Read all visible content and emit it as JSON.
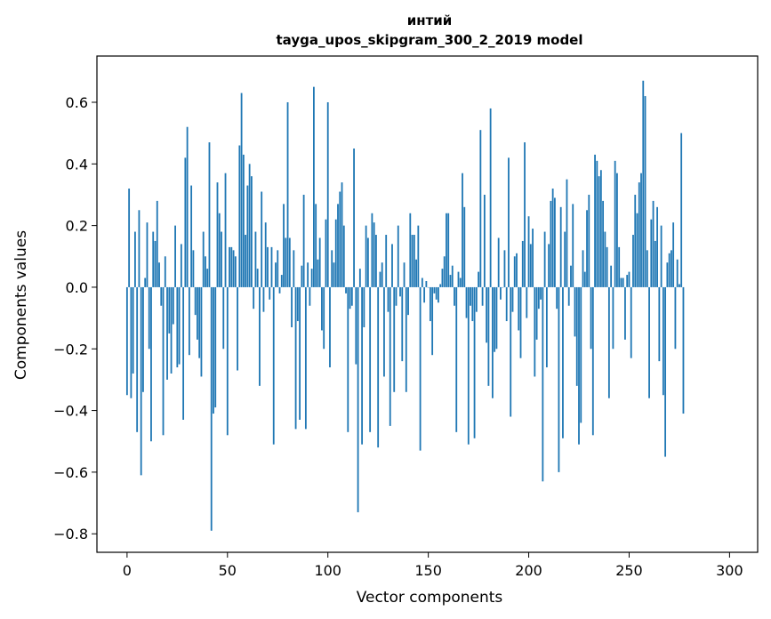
{
  "chart_data": {
    "type": "bar",
    "title_line1": "интий",
    "title_line2": "tayga_upos_skipgram_300_2_2019 model",
    "xlabel": "Vector components",
    "ylabel": "Components values",
    "xlim": [
      -15,
      314
    ],
    "ylim": [
      -0.86,
      0.75
    ],
    "xticks": [
      0,
      50,
      100,
      150,
      200,
      250,
      300
    ],
    "xtick_labels": [
      "0",
      "50",
      "100",
      "150",
      "200",
      "250",
      "300"
    ],
    "yticks": [
      -0.8,
      -0.6,
      -0.4,
      -0.2,
      0.0,
      0.2,
      0.4,
      0.6
    ],
    "ytick_labels": [
      "−0.8",
      "−0.6",
      "−0.4",
      "−0.2",
      "0.0",
      "0.2",
      "0.4",
      "0.6"
    ],
    "color": "#1f77b4",
    "values": [
      -0.35,
      0.32,
      -0.36,
      -0.28,
      0.18,
      -0.47,
      0.25,
      -0.61,
      -0.34,
      0.03,
      0.21,
      -0.2,
      -0.5,
      0.18,
      0.15,
      0.28,
      0.08,
      -0.06,
      -0.48,
      0.1,
      -0.3,
      -0.15,
      -0.28,
      -0.12,
      0.2,
      -0.26,
      -0.25,
      0.14,
      -0.43,
      0.42,
      0.52,
      -0.22,
      0.33,
      0.12,
      -0.09,
      -0.17,
      -0.23,
      -0.29,
      0.18,
      0.1,
      0.06,
      0.47,
      -0.79,
      -0.41,
      -0.39,
      0.34,
      0.24,
      0.18,
      -0.2,
      0.37,
      -0.48,
      0.13,
      0.13,
      0.12,
      0.1,
      -0.27,
      0.46,
      0.63,
      0.43,
      0.17,
      0.33,
      0.4,
      0.36,
      -0.07,
      0.18,
      0.06,
      -0.32,
      0.31,
      -0.08,
      0.21,
      0.13,
      -0.04,
      0.13,
      -0.51,
      0.08,
      0.12,
      -0.02,
      0.04,
      0.27,
      0.16,
      0.6,
      0.16,
      -0.13,
      0.12,
      -0.46,
      -0.11,
      -0.43,
      0.07,
      0.3,
      -0.46,
      0.08,
      -0.06,
      0.06,
      0.65,
      0.27,
      0.09,
      0.16,
      -0.14,
      -0.2,
      0.22,
      0.6,
      -0.26,
      0.12,
      0.08,
      0.22,
      0.27,
      0.31,
      0.34,
      0.2,
      -0.02,
      -0.47,
      -0.07,
      -0.06,
      0.45,
      -0.25,
      -0.73,
      0.06,
      -0.51,
      -0.13,
      0.2,
      0.16,
      -0.47,
      0.24,
      0.21,
      0.17,
      -0.52,
      0.05,
      0.08,
      -0.29,
      0.17,
      -0.08,
      -0.45,
      0.14,
      -0.34,
      -0.06,
      0.2,
      -0.03,
      -0.24,
      0.08,
      -0.34,
      -0.09,
      0.24,
      0.17,
      0.17,
      0.09,
      0.2,
      -0.53,
      0.03,
      -0.05,
      0.02,
      0.0,
      -0.11,
      -0.22,
      -0.02,
      -0.04,
      -0.05,
      0.01,
      0.06,
      0.1,
      0.24,
      0.24,
      0.04,
      0.07,
      -0.06,
      -0.47,
      0.05,
      0.03,
      0.37,
      0.26,
      -0.1,
      -0.51,
      -0.06,
      -0.11,
      -0.49,
      -0.08,
      0.05,
      0.51,
      -0.06,
      0.3,
      -0.18,
      -0.32,
      0.58,
      -0.36,
      -0.21,
      -0.2,
      0.16,
      -0.04,
      0.0,
      0.12,
      -0.11,
      0.42,
      -0.42,
      -0.08,
      0.1,
      0.11,
      -0.14,
      -0.23,
      0.15,
      0.47,
      -0.1,
      0.23,
      0.14,
      0.19,
      -0.29,
      -0.17,
      -0.07,
      -0.04,
      -0.63,
      0.18,
      -0.26,
      0.14,
      0.28,
      0.32,
      0.29,
      -0.07,
      -0.6,
      0.26,
      -0.49,
      0.18,
      0.35,
      -0.06,
      0.07,
      0.27,
      -0.16,
      -0.32,
      -0.51,
      -0.44,
      0.12,
      0.05,
      0.25,
      0.3,
      -0.2,
      -0.48,
      0.43,
      0.41,
      0.36,
      0.38,
      0.28,
      0.18,
      0.13,
      -0.36,
      0.07,
      -0.2,
      0.41,
      0.37,
      0.13,
      0.03,
      0.03,
      -0.17,
      0.04,
      0.05,
      -0.23,
      0.17,
      0.3,
      0.24,
      0.34,
      0.37,
      0.67,
      0.62,
      0.12,
      -0.36,
      0.22,
      0.28,
      0.15,
      0.26,
      -0.24,
      0.2,
      -0.35,
      -0.55,
      0.08,
      0.11,
      0.12,
      0.21,
      -0.2,
      0.09,
      0.01,
      0.5,
      -0.41
    ]
  }
}
